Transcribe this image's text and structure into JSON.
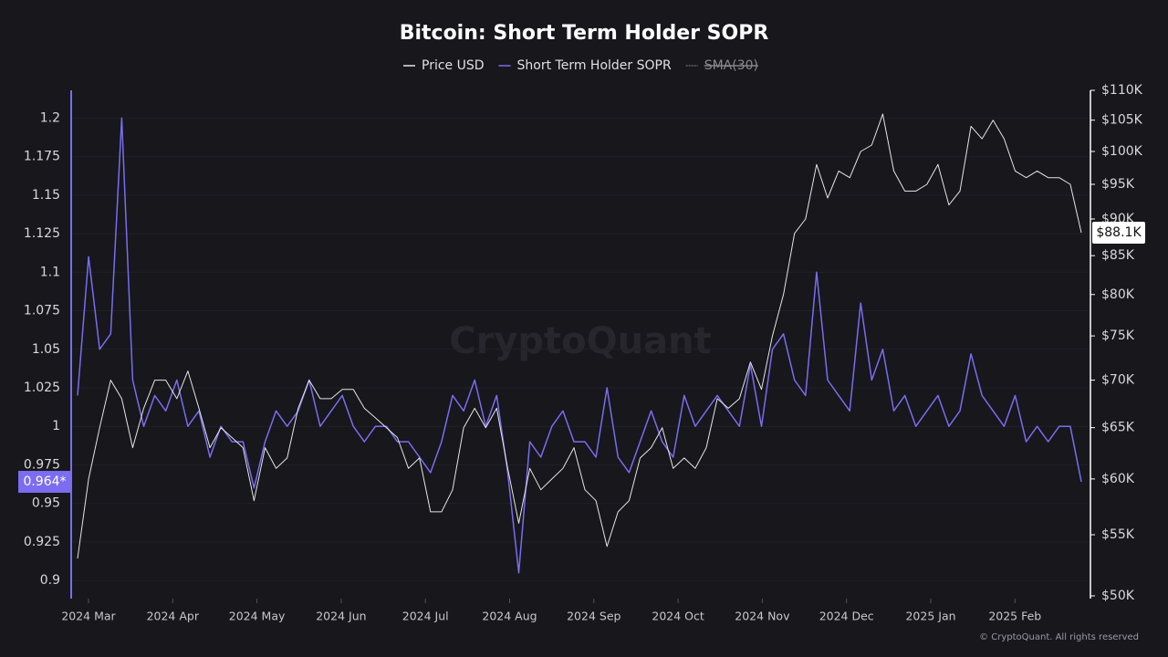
{
  "chart_data": {
    "type": "line",
    "title": "Bitcoin: Short Term Holder SOPR",
    "x_labels": [
      "2024 Mar",
      "2024 Apr",
      "2024 May",
      "2024 Jun",
      "2024 Jul",
      "2024 Aug",
      "2024 Sep",
      "2024 Oct",
      "2024 Nov",
      "2024 Dec",
      "2025 Jan",
      "2025 Feb"
    ],
    "series": [
      {
        "name": "Price USD",
        "color": "#e6e6e6",
        "axis": "y2",
        "values": [
          53000,
          60000,
          65000,
          70000,
          68000,
          63000,
          67000,
          70000,
          70000,
          68000,
          71000,
          67000,
          63000,
          65000,
          64000,
          63000,
          58000,
          63000,
          61000,
          62000,
          67000,
          70000,
          68000,
          68000,
          69000,
          69000,
          67000,
          66000,
          65000,
          64000,
          61000,
          62000,
          57000,
          57000,
          59000,
          65000,
          67000,
          65000,
          67000,
          61000,
          56000,
          61000,
          59000,
          60000,
          61000,
          63000,
          59000,
          58000,
          54000,
          57000,
          58000,
          62000,
          63000,
          65000,
          61000,
          62000,
          61000,
          63000,
          68000,
          67000,
          68000,
          72000,
          69000,
          75000,
          80000,
          88000,
          90000,
          98000,
          93000,
          97000,
          96000,
          100000,
          101000,
          106000,
          97000,
          94000,
          94000,
          95000,
          98000,
          92000,
          94000,
          104000,
          102000,
          105000,
          102000,
          97000,
          96000,
          97000,
          96000,
          96000,
          95000,
          88100
        ]
      },
      {
        "name": "Short Term Holder SOPR",
        "color": "#7b6cf0",
        "axis": "y",
        "values": [
          1.02,
          1.11,
          1.05,
          1.06,
          1.2,
          1.03,
          1.0,
          1.02,
          1.01,
          1.03,
          1.0,
          1.01,
          0.98,
          1.0,
          0.99,
          0.99,
          0.96,
          0.99,
          1.01,
          1.0,
          1.01,
          1.03,
          1.0,
          1.01,
          1.02,
          1.0,
          0.99,
          1.0,
          1.0,
          0.99,
          0.99,
          0.98,
          0.97,
          0.99,
          1.02,
          1.01,
          1.03,
          1.0,
          1.02,
          0.97,
          0.905,
          0.99,
          0.98,
          1.0,
          1.01,
          0.99,
          0.99,
          0.98,
          1.025,
          0.98,
          0.97,
          0.99,
          1.01,
          0.99,
          0.98,
          1.02,
          1.0,
          1.01,
          1.02,
          1.01,
          1.0,
          1.04,
          1.0,
          1.05,
          1.06,
          1.03,
          1.02,
          1.1,
          1.03,
          1.02,
          1.01,
          1.08,
          1.03,
          1.05,
          1.01,
          1.02,
          1.0,
          1.01,
          1.02,
          1.0,
          1.01,
          1.047,
          1.02,
          1.01,
          1.0,
          1.02,
          0.99,
          1.0,
          0.99,
          1.0,
          1.0,
          0.964
        ]
      }
    ],
    "legend_disabled": [
      {
        "name": "SMA(30)",
        "color": "#8a8a8a"
      }
    ],
    "ylim": [
      0.89,
      1.218
    ],
    "yticks": [
      0.9,
      0.925,
      0.95,
      0.975,
      1,
      1.025,
      1.05,
      1.075,
      1.1,
      1.125,
      1.15,
      1.175,
      1.2
    ],
    "y2lim": [
      50000,
      110000
    ],
    "y2log": true,
    "y2ticks": [
      {
        "value": 50000,
        "label": "$50K"
      },
      {
        "value": 55000,
        "label": "$55K"
      },
      {
        "value": 60000,
        "label": "$60K"
      },
      {
        "value": 65000,
        "label": "$65K"
      },
      {
        "value": 70000,
        "label": "$70K"
      },
      {
        "value": 75000,
        "label": "$75K"
      },
      {
        "value": 80000,
        "label": "$80K"
      },
      {
        "value": 85000,
        "label": "$85K"
      },
      {
        "value": 90000,
        "label": "$90K"
      },
      {
        "value": 95000,
        "label": "$95K"
      },
      {
        "value": 100000,
        "label": "$100K"
      },
      {
        "value": 105000,
        "label": "$105K"
      },
      {
        "value": 110000,
        "label": "$110K"
      }
    ],
    "grid": true,
    "annotations": [
      {
        "value": 0.964,
        "label": "0.964*",
        "axis": "y"
      },
      {
        "value": 88100,
        "label": "$88.1K",
        "axis": "y2"
      }
    ],
    "watermark": "CryptoQuant",
    "footer": "© CryptoQuant. All rights reserved"
  }
}
